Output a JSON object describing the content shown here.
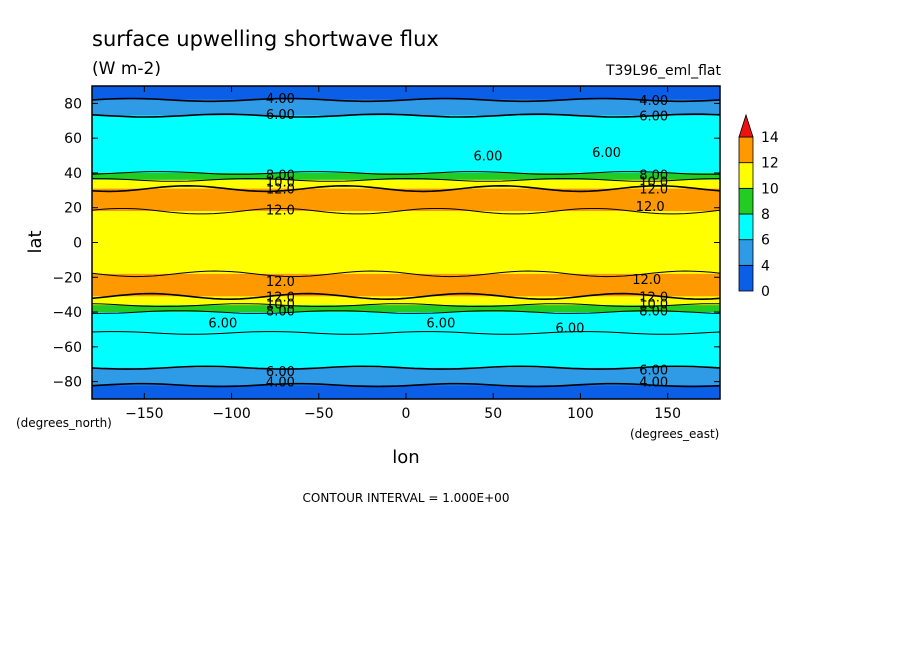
{
  "chart_data": {
    "type": "heatmap",
    "title": "surface upwelling shortwave flux",
    "units": "(W m-2)",
    "run_label": "T39L96_eml_flat",
    "xlabel": "lon",
    "ylabel": "lat",
    "x_units": "(degrees_east)",
    "y_units": "(degrees_north)",
    "xlim": [
      -180,
      180
    ],
    "ylim": [
      -90,
      90
    ],
    "x_ticks": [
      -150,
      -100,
      -50,
      0,
      50,
      100,
      150
    ],
    "y_ticks": [
      -80,
      -60,
      -40,
      -20,
      0,
      20,
      40,
      60,
      80
    ],
    "footer": "CONTOUR INTERVAL = 1.000E+00",
    "colorbar": {
      "levels": [
        0,
        4,
        6,
        8,
        10,
        12,
        14
      ],
      "tick_labels": [
        "0",
        "4",
        "6",
        "8",
        "10",
        "12",
        "14"
      ],
      "colors": [
        "#0a5fe6",
        "#2f9ae6",
        "#00ffff",
        "#22cc22",
        "#ffff00",
        "#ff9900",
        "#ee1111"
      ],
      "extend": "max"
    },
    "zonal_bands": [
      {
        "lat_from": 90,
        "lat_to": 82,
        "value_range": "0-4"
      },
      {
        "lat_from": 82,
        "lat_to": 73,
        "value_range": "4-6"
      },
      {
        "lat_from": 73,
        "lat_to": 40,
        "value_range": "6-8"
      },
      {
        "lat_from": 40,
        "lat_to": 36,
        "value_range": "8-10"
      },
      {
        "lat_from": 36,
        "lat_to": 31,
        "value_range": "10-12"
      },
      {
        "lat_from": 31,
        "lat_to": 18,
        "value_range": "12-14"
      },
      {
        "lat_from": 18,
        "lat_to": -18,
        "value_range": "10-12"
      },
      {
        "lat_from": -18,
        "lat_to": -31,
        "value_range": "12-14"
      },
      {
        "lat_from": -31,
        "lat_to": -36,
        "value_range": "10-12"
      },
      {
        "lat_from": -36,
        "lat_to": -40,
        "value_range": "8-10"
      },
      {
        "lat_from": -40,
        "lat_to": -52,
        "value_range": "6-8"
      },
      {
        "lat_from": -52,
        "lat_to": -72,
        "value_range": "6-8"
      },
      {
        "lat_from": -72,
        "lat_to": -82,
        "value_range": "4-6"
      },
      {
        "lat_from": -82,
        "lat_to": -90,
        "value_range": "0-4"
      }
    ],
    "contour_labels": [
      {
        "text": "4.00",
        "lon": -72,
        "lat": 83
      },
      {
        "text": "4.00",
        "lon": 142,
        "lat": 82
      },
      {
        "text": "6.00",
        "lon": -72,
        "lat": 74
      },
      {
        "text": "6.00",
        "lon": 142,
        "lat": 73
      },
      {
        "text": "6.00",
        "lon": 47,
        "lat": 50
      },
      {
        "text": "6.00",
        "lon": 115,
        "lat": 52
      },
      {
        "text": "8.00",
        "lon": -72,
        "lat": 39
      },
      {
        "text": "8.00",
        "lon": 142,
        "lat": 39
      },
      {
        "text": "10.0",
        "lon": -72,
        "lat": 35
      },
      {
        "text": "10.0",
        "lon": 142,
        "lat": 35
      },
      {
        "text": "12.0",
        "lon": -72,
        "lat": 31
      },
      {
        "text": "12.0",
        "lon": 142,
        "lat": 31
      },
      {
        "text": "12.0",
        "lon": -72,
        "lat": 19
      },
      {
        "text": "12.0",
        "lon": 140,
        "lat": 21
      },
      {
        "text": "12.0",
        "lon": -72,
        "lat": -22
      },
      {
        "text": "12.0",
        "lon": 138,
        "lat": -21
      },
      {
        "text": "12.0",
        "lon": -72,
        "lat": -31
      },
      {
        "text": "12.0",
        "lon": 142,
        "lat": -31
      },
      {
        "text": "10.0",
        "lon": -72,
        "lat": -35
      },
      {
        "text": "10.0",
        "lon": 142,
        "lat": -35
      },
      {
        "text": "8.00",
        "lon": -72,
        "lat": -39
      },
      {
        "text": "8.00",
        "lon": 142,
        "lat": -39
      },
      {
        "text": "6.00",
        "lon": -105,
        "lat": -46
      },
      {
        "text": "6.00",
        "lon": 20,
        "lat": -46
      },
      {
        "text": "6.00",
        "lon": 94,
        "lat": -49
      },
      {
        "text": "6.00",
        "lon": -72,
        "lat": -74
      },
      {
        "text": "6.00",
        "lon": 142,
        "lat": -73
      },
      {
        "text": "4.00",
        "lon": -72,
        "lat": -80
      },
      {
        "text": "4.00",
        "lon": 142,
        "lat": -80
      }
    ]
  }
}
